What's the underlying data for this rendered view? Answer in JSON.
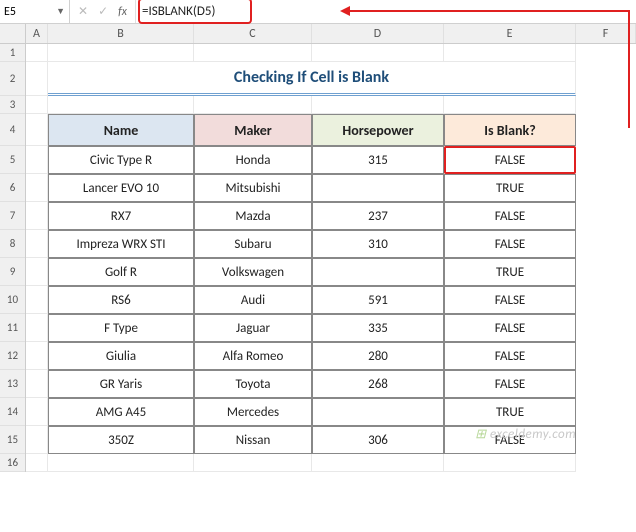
{
  "formulaBar": {
    "cellRef": "E5",
    "formula": "=ISBLANK(D5)"
  },
  "columns": [
    "A",
    "B",
    "C",
    "D",
    "E",
    "F"
  ],
  "rowNumbers": [
    1,
    2,
    3,
    4,
    5,
    6,
    7,
    8,
    9,
    10,
    11,
    12,
    13,
    14,
    15,
    16
  ],
  "title": "Checking If Cell is Blank",
  "headers": {
    "name": "Name",
    "maker": "Maker",
    "hp": "Horsepower",
    "blank": "Is Blank?"
  },
  "headerColors": {
    "name": "#dce6f1",
    "maker": "#f2dcdb",
    "hp": "#ebf1de",
    "blank": "#fdeada"
  },
  "rows": [
    {
      "name": "Civic Type R",
      "maker": "Honda",
      "hp": "315",
      "blank": "FALSE"
    },
    {
      "name": "Lancer EVO 10",
      "maker": "Mitsubishi",
      "hp": "",
      "blank": "TRUE"
    },
    {
      "name": "RX7",
      "maker": "Mazda",
      "hp": "237",
      "blank": "FALSE"
    },
    {
      "name": "Impreza WRX STI",
      "maker": "Subaru",
      "hp": "310",
      "blank": "FALSE"
    },
    {
      "name": "Golf R",
      "maker": "Volkswagen",
      "hp": "",
      "blank": "TRUE"
    },
    {
      "name": "RS6",
      "maker": "Audi",
      "hp": "591",
      "blank": "FALSE"
    },
    {
      "name": "F Type",
      "maker": "Jaguar",
      "hp": "335",
      "blank": "FALSE"
    },
    {
      "name": "Giulia",
      "maker": "Alfa Romeo",
      "hp": "280",
      "blank": "FALSE"
    },
    {
      "name": "GR Yaris",
      "maker": "Toyota",
      "hp": "268",
      "blank": "FALSE"
    },
    {
      "name": "AMG A45",
      "maker": "Mercedes",
      "hp": "",
      "blank": "TRUE"
    },
    {
      "name": "350Z",
      "maker": "Nissan",
      "hp": "306",
      "blank": "FALSE"
    }
  ],
  "watermark": "exceldemy.com",
  "annotation": {
    "highlightColor": "#e02020"
  }
}
